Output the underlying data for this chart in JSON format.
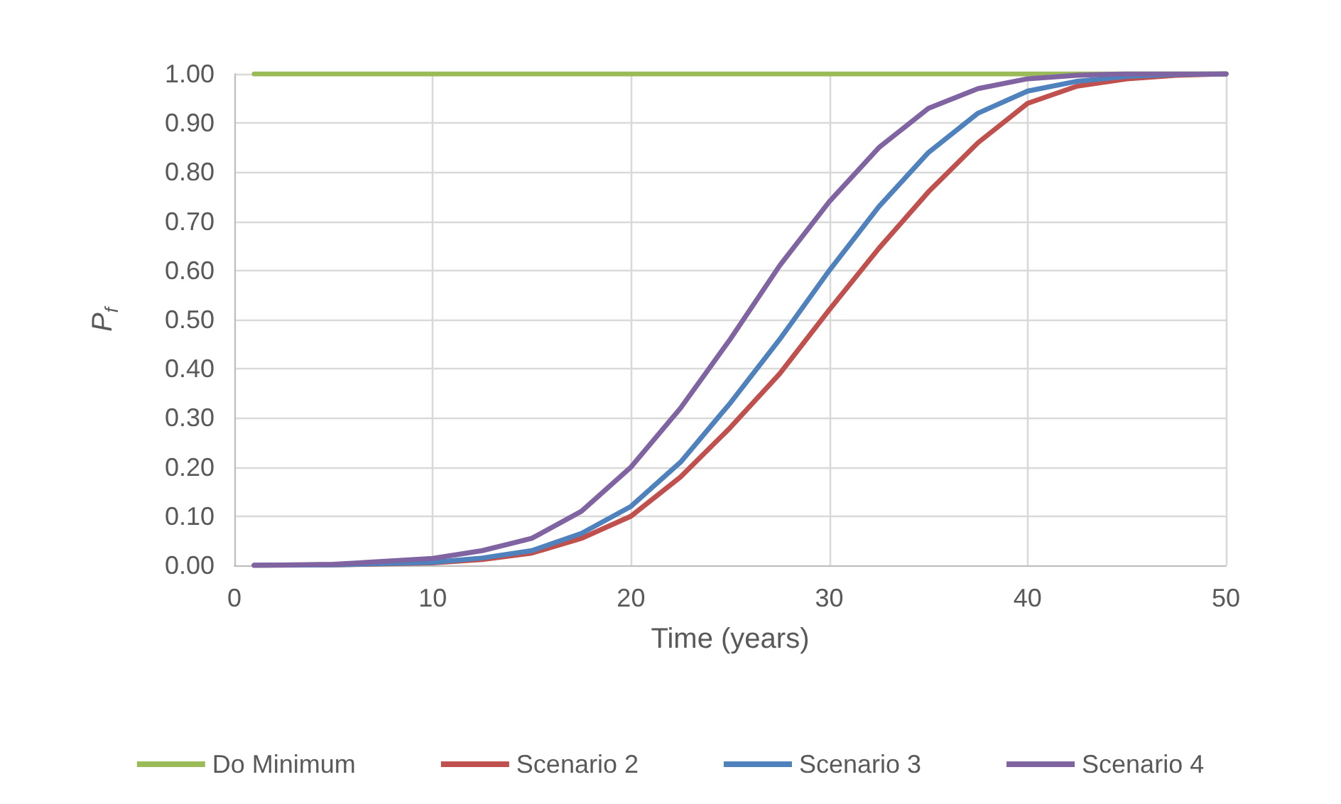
{
  "chart_data": {
    "type": "line",
    "xlabel": "Time (years)",
    "ylabel": "P$_{f}$",
    "xlim": [
      0,
      50
    ],
    "xticks": [
      0,
      10,
      20,
      30,
      40,
      50
    ],
    "ylim": [
      0,
      1
    ],
    "yticks": [
      {
        "value": 0,
        "label": "0.00"
      },
      {
        "value": 0.1,
        "label": "0.10"
      },
      {
        "value": 0.2,
        "label": "0.20"
      },
      {
        "value": 0.3,
        "label": "0.30"
      },
      {
        "value": 0.4,
        "label": "0.40"
      },
      {
        "value": 0.5,
        "label": "0.50"
      },
      {
        "value": 0.6,
        "label": "0.60"
      },
      {
        "value": 0.7,
        "label": "0.70"
      },
      {
        "value": 0.8,
        "label": "0.80"
      },
      {
        "value": 0.9,
        "label": "0.90"
      },
      {
        "value": 1,
        "label": "1.00"
      }
    ],
    "grid": true,
    "legend": "bottom",
    "marker": "none",
    "line_style": "solid",
    "x": [
      1,
      5,
      10,
      12.5,
      15,
      17.5,
      20,
      22.5,
      25,
      27.5,
      30,
      32.5,
      35,
      37.5,
      40,
      42.5,
      45,
      47.5,
      50
    ],
    "series": [
      {
        "name": "Do Minimum",
        "color": "#9bbb59",
        "values": [
          1,
          1,
          1,
          1,
          1,
          1,
          1,
          1,
          1,
          1,
          1,
          1,
          1,
          1,
          1,
          1,
          1,
          1,
          1
        ]
      },
      {
        "name": "Scenario 2",
        "color": "#c0504d",
        "values": [
          0,
          0.001,
          0.005,
          0.012,
          0.025,
          0.055,
          0.1,
          0.18,
          0.28,
          0.39,
          0.52,
          0.645,
          0.76,
          0.86,
          0.94,
          0.975,
          0.99,
          0.997,
          1
        ]
      },
      {
        "name": "Scenario 3",
        "color": "#4f81bd",
        "values": [
          0,
          0.001,
          0.006,
          0.015,
          0.03,
          0.065,
          0.12,
          0.21,
          0.33,
          0.46,
          0.6,
          0.73,
          0.84,
          0.92,
          0.965,
          0.985,
          0.995,
          0.999,
          1
        ]
      },
      {
        "name": "Scenario 4",
        "color": "#8064a2",
        "values": [
          0,
          0.002,
          0.014,
          0.03,
          0.055,
          0.11,
          0.2,
          0.32,
          0.46,
          0.61,
          0.74,
          0.85,
          0.93,
          0.97,
          0.99,
          0.997,
          1,
          1,
          1
        ]
      }
    ]
  }
}
